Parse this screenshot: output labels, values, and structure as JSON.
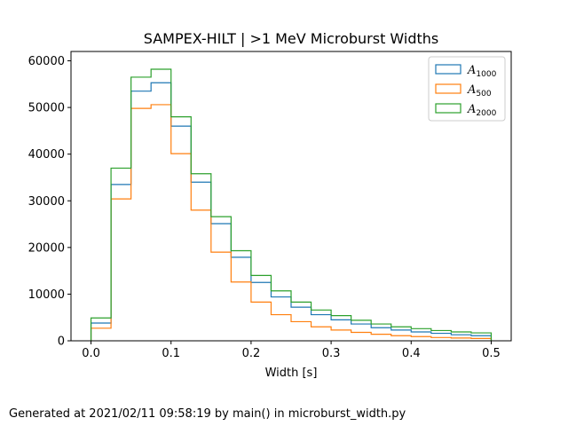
{
  "chart_data": {
    "type": "histogram-step",
    "title": "SAMPEX-HILT | >1 MeV Microburst Widths",
    "xlabel": "Width [s]",
    "ylabel": "",
    "xlim": [
      -0.025,
      0.525
    ],
    "ylim": [
      0,
      62000
    ],
    "x_ticks": [
      "0.0",
      "0.1",
      "0.2",
      "0.3",
      "0.4",
      "0.5"
    ],
    "y_ticks": [
      "0",
      "10000",
      "20000",
      "30000",
      "40000",
      "50000",
      "60000"
    ],
    "bin_edges": [
      0.0,
      0.025,
      0.05,
      0.075,
      0.1,
      0.125,
      0.15,
      0.175,
      0.2,
      0.225,
      0.25,
      0.275,
      0.3,
      0.325,
      0.35,
      0.375,
      0.4,
      0.425,
      0.45,
      0.475,
      0.5
    ],
    "legend_position": "top-right",
    "grid": false,
    "series": [
      {
        "name": "A",
        "name_sub": "1000",
        "color": "#1f77b4",
        "values": [
          3800,
          33500,
          53500,
          55300,
          46000,
          34000,
          25100,
          17900,
          12500,
          9400,
          7200,
          5600,
          4500,
          3600,
          2800,
          2300,
          1900,
          1600,
          1300,
          1100
        ]
      },
      {
        "name": "A",
        "name_sub": "500",
        "color": "#ff7f0e",
        "values": [
          2700,
          30400,
          49800,
          50600,
          40100,
          28000,
          19000,
          12600,
          8300,
          5600,
          4100,
          3000,
          2300,
          1800,
          1400,
          1100,
          900,
          700,
          600,
          500
        ]
      },
      {
        "name": "A",
        "name_sub": "2000",
        "color": "#2ca02c",
        "values": [
          4900,
          37000,
          56500,
          58200,
          48000,
          35800,
          26600,
          19300,
          14000,
          10700,
          8300,
          6600,
          5400,
          4400,
          3600,
          3000,
          2600,
          2200,
          1900,
          1700
        ]
      }
    ]
  },
  "footer": {
    "text": "Generated at 2021/02/11 09:58:19 by main() in microburst_width.py"
  }
}
